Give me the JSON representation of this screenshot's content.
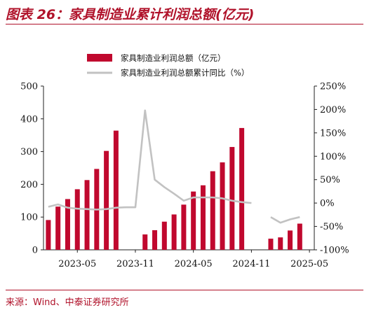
{
  "title": "图表 26：家具制造业累计利润总额(亿元)",
  "source": "来源：Wind、中泰证券研究所",
  "colors": {
    "brand": "#b0122a",
    "bar": "#c0082e",
    "line": "#c2c2c2",
    "axis": "#222222"
  },
  "chart_data": {
    "type": "bar+line",
    "legend": [
      "家具制造业利润总额（亿元）",
      "家具制造业利润总额累计同比（%）"
    ],
    "legend_placement": "top-center",
    "grid": false,
    "x_tick_labels": [
      "2023-05",
      "2023-11",
      "2024-05",
      "2024-11",
      "2025-05"
    ],
    "y_left_ticks": [
      "0",
      "100",
      "200",
      "300",
      "400",
      "500"
    ],
    "y_right_ticks": [
      "-100%",
      "-50%",
      "0%",
      "50%",
      "100%",
      "150%",
      "200%",
      "250%"
    ],
    "ylim_left": [
      0,
      500
    ],
    "ylim_right": [
      -100,
      250
    ],
    "months": [
      "2023-02",
      "2023-03",
      "2023-04",
      "2023-05",
      "2023-06",
      "2023-07",
      "2023-08",
      "2023-09",
      "2023-10",
      "2023-11",
      "2023-12",
      "2024-01",
      "2024-02",
      "2024-03",
      "2024-04",
      "2024-05",
      "2024-06",
      "2024-07",
      "2024-08",
      "2024-09",
      "2024-10",
      "2024-11",
      "2024-12",
      "2025-01",
      "2025-02",
      "2025-03",
      "2025-04",
      "2025-05"
    ],
    "series": [
      {
        "name": "家具制造业利润总额（亿元）",
        "type": "bar",
        "axis": "left",
        "values": [
          91,
          132,
          155,
          185,
          213,
          247,
          302,
          364,
          null,
          null,
          47,
          60,
          86,
          108,
          138,
          178,
          197,
          240,
          267,
          314,
          372,
          null,
          null,
          34,
          38,
          59,
          80,
          null
        ]
      },
      {
        "name": "家具制造业利润总额累计同比（%）",
        "type": "line",
        "axis": "right",
        "values": [
          -8,
          -3,
          -10,
          -12,
          -13,
          -14,
          -13,
          -10,
          -9,
          -9,
          198,
          50,
          34,
          20,
          5,
          12,
          12,
          12,
          10,
          5,
          2,
          0,
          null,
          -30,
          -42,
          -35,
          -30,
          null
        ]
      }
    ]
  }
}
